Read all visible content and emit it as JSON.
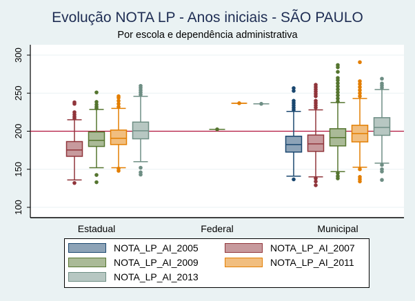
{
  "chart_data": {
    "type": "box",
    "title": "Evolução NOTA LP - Anos iniciais - SÃO PAULO",
    "subtitle": "Por escola e dependência administrativa",
    "categories": [
      "Estadual",
      "Federal",
      "Municipal"
    ],
    "ylim": [
      90,
      315
    ],
    "yticks": [
      100,
      150,
      200,
      250,
      300
    ],
    "reference_line": 200,
    "grid": true,
    "legend_position": "bottom",
    "series": [
      {
        "name": "NOTA_LP_AI_2005",
        "color": "#1a476f",
        "fill": "#8da3b7",
        "boxes": [
          null,
          null,
          {
            "lw": 141,
            "q1": 172.6,
            "med": 182.5,
            "q3": 193.4,
            "uw": 226,
            "outliers": [
              256.6,
              253,
              240,
              237,
              234,
              231,
              228,
              136.7
            ]
          }
        ]
      },
      {
        "name": "NOTA_LP_AI_2007",
        "color": "#90353b",
        "fill": "#c79a9d",
        "boxes": [
          {
            "lw": 136,
            "q1": 167,
            "med": 175.3,
            "q3": 186.4,
            "uw": 215,
            "outliers": [
              238,
              236,
              225,
              222,
              219,
              217,
              132
            ]
          },
          null,
          {
            "lw": 140,
            "q1": 173.5,
            "med": 183.4,
            "q3": 195,
            "uw": 228,
            "outliers": [
              261,
              258,
              255,
              252,
              249,
              246,
              240,
              237,
              234,
              231,
              138,
              134,
              129
            ]
          }
        ]
      },
      {
        "name": "NOTA_LP_AI_2009",
        "color": "#55752f",
        "fill": "#aaba97",
        "boxes": [
          {
            "lw": 152,
            "q1": 180,
            "med": 188,
            "q3": 199,
            "uw": 228.6,
            "outliers": [
              251,
              238.5,
              235,
              232,
              230,
              142.5,
              133
            ]
          },
          {
            "lw": 202.5,
            "q1": 202.5,
            "med": 202.5,
            "q3": 202.5,
            "uw": 202.5,
            "outliers": [
              202.5
            ]
          },
          {
            "lw": 147,
            "q1": 180.7,
            "med": 191.6,
            "q3": 203.3,
            "uw": 237.7,
            "outliers": [
              287,
              284,
              278,
              270,
              267,
              263,
              259,
              255,
              251,
              247,
              243,
              239,
              145,
              141,
              138
            ]
          }
        ]
      },
      {
        "name": "NOTA_LP_AI_2011",
        "color": "#e37e00",
        "fill": "#f1be7f",
        "boxes": [
          {
            "lw": 152,
            "q1": 182.5,
            "med": 190.7,
            "q3": 201.5,
            "uw": 230,
            "outliers": [
              246,
              244,
              240,
              236,
              232,
              151,
              148
            ]
          },
          {
            "lw": 236.8,
            "q1": 236.8,
            "med": 236.8,
            "q3": 236.8,
            "uw": 236.8,
            "outliers": [
              236.8
            ]
          },
          {
            "lw": 152.7,
            "q1": 186,
            "med": 197,
            "q3": 207.8,
            "uw": 243,
            "outliers": [
              290.7,
              265.7,
              262,
              258,
              254,
              250,
              246,
              150,
              140,
              137,
              134
            ]
          }
        ]
      },
      {
        "name": "NOTA_LP_AI_2013",
        "color": "#6e8e84",
        "fill": "#b7c7c2",
        "boxes": [
          {
            "lw": 160,
            "q1": 190,
            "med": 200.6,
            "q3": 212,
            "uw": 245.8,
            "outliers": [
              259.6,
              257,
              254,
              251,
              248,
              152,
              146,
              143
            ]
          },
          {
            "lw": 236,
            "q1": 236,
            "med": 236,
            "q3": 236,
            "uw": 236,
            "outliers": [
              236
            ]
          },
          {
            "lw": 158,
            "q1": 194.6,
            "med": 205,
            "q3": 217.8,
            "uw": 254.8,
            "outliers": [
              269,
              262.7,
              260,
              257,
              155.7,
              150,
              147,
              136
            ]
          }
        ]
      }
    ]
  }
}
